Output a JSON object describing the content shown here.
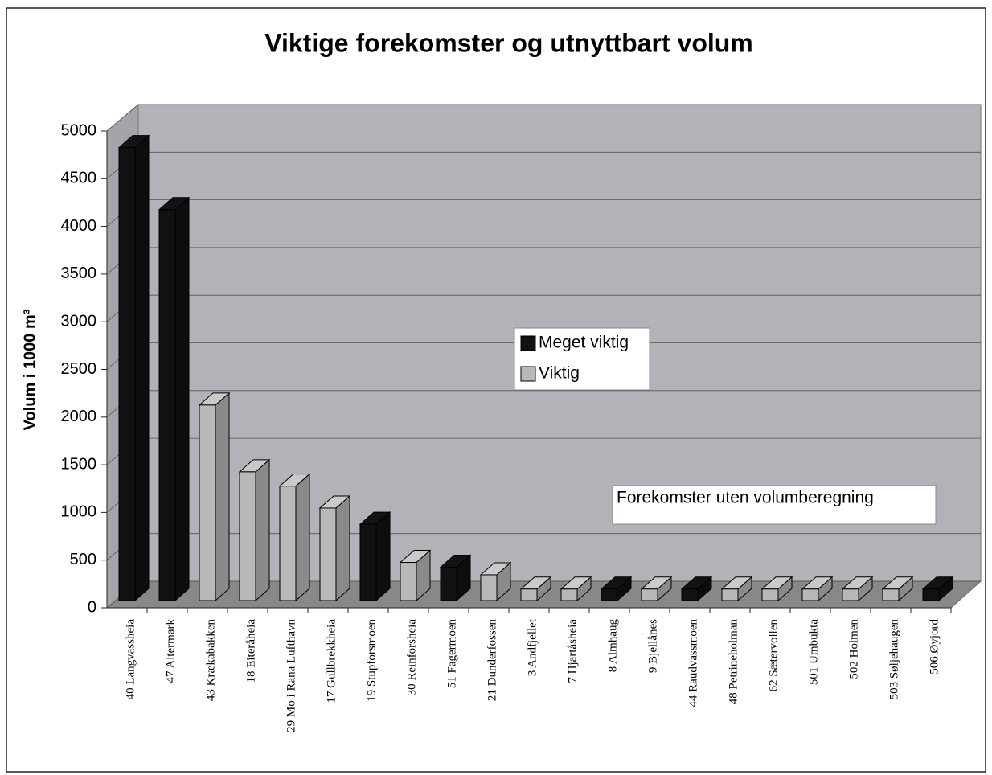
{
  "chart_data": {
    "type": "bar3d",
    "title": "Viktige forekomster og utnyttbart volum",
    "y_label": "Volum i 1000 m³",
    "annotation": "Forekomster uten volumberegning",
    "categories": [
      "40 Langvassheia",
      "47 Altermark",
      "43 Krækabakken",
      "18 Eiteråheia",
      "29 Mo i Rana Lufthavn",
      "17 Gullbrekkheia",
      "19 Stupforsmoen",
      "30 Reinforsheia",
      "51 Fagermoen",
      "21 Dunderfossen",
      "3 Andfjellet",
      "7 Hjartåsheia",
      "8 Almhaug",
      "9 Bjellånes",
      "44 Raudvassmoen",
      "48 Petrineholman",
      "62 Sætervollen",
      "501 Umbukta",
      "502 Holmen",
      "503 Søljehaugen",
      "506 Øyjord"
    ],
    "series": [
      {
        "name": "Meget viktig",
        "color": "#111111",
        "values": [
          4750,
          4100,
          null,
          null,
          null,
          null,
          800,
          null,
          350,
          null,
          null,
          null,
          120,
          null,
          120,
          null,
          null,
          null,
          null,
          null,
          120
        ]
      },
      {
        "name": "Viktig",
        "color": "#b8b8b8",
        "values": [
          null,
          null,
          2050,
          1350,
          1200,
          970,
          null,
          400,
          null,
          270,
          120,
          120,
          null,
          120,
          null,
          120,
          120,
          120,
          120,
          120,
          null
        ]
      }
    ],
    "ylim": [
      0,
      5000
    ],
    "yticks": [
      0,
      500,
      1000,
      1500,
      2000,
      2500,
      3000,
      3500,
      4000,
      4500,
      5000
    ],
    "grid": true
  }
}
